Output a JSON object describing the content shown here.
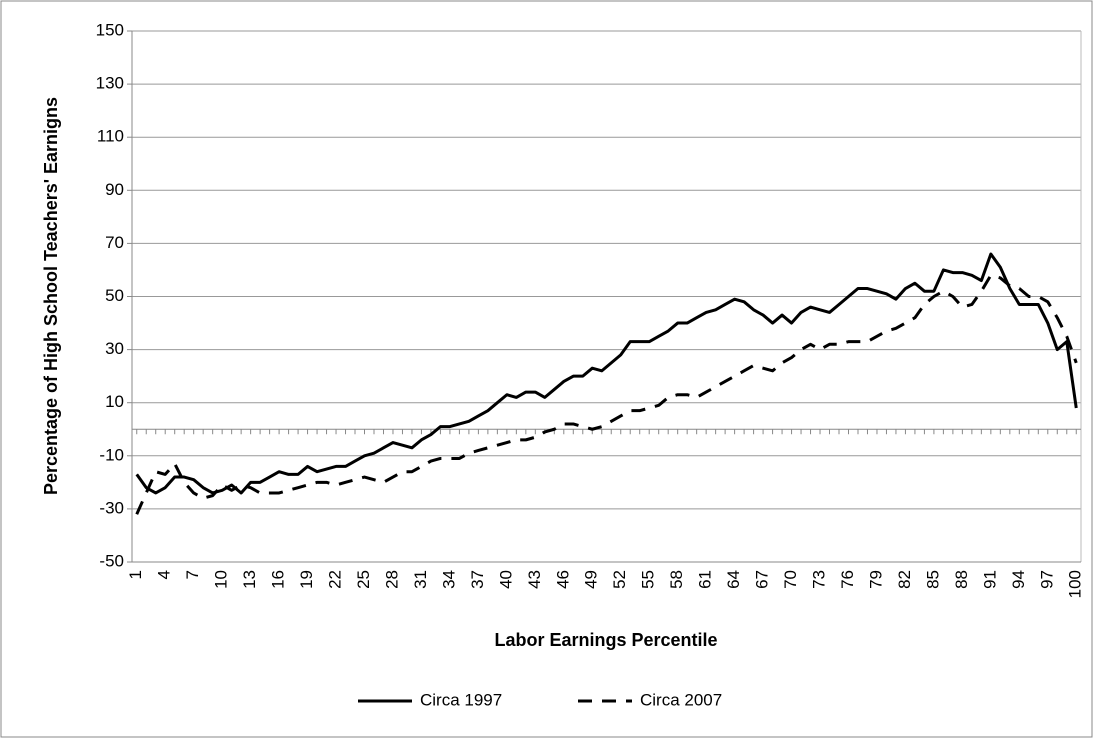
{
  "chart_data": {
    "type": "line",
    "ylabel": "Percentage of High School Teachers' Earnigns",
    "xlabel": "Labor Earnings Percentile",
    "x": [
      1,
      2,
      3,
      4,
      5,
      6,
      7,
      8,
      9,
      10,
      11,
      12,
      13,
      14,
      15,
      16,
      17,
      18,
      19,
      20,
      21,
      22,
      23,
      24,
      25,
      26,
      27,
      28,
      29,
      30,
      31,
      32,
      33,
      34,
      35,
      36,
      37,
      38,
      39,
      40,
      41,
      42,
      43,
      44,
      45,
      46,
      47,
      48,
      49,
      50,
      51,
      52,
      53,
      54,
      55,
      56,
      57,
      58,
      59,
      60,
      61,
      62,
      63,
      64,
      65,
      66,
      67,
      68,
      69,
      70,
      71,
      72,
      73,
      74,
      75,
      76,
      77,
      78,
      79,
      80,
      81,
      82,
      83,
      84,
      85,
      86,
      87,
      88,
      89,
      90,
      91,
      92,
      93,
      94,
      95,
      96,
      97,
      98,
      99,
      100
    ],
    "xlim": [
      0.5,
      100.5
    ],
    "xticks": [
      1,
      4,
      7,
      10,
      13,
      16,
      19,
      22,
      25,
      28,
      31,
      34,
      37,
      40,
      43,
      46,
      49,
      52,
      55,
      58,
      61,
      64,
      67,
      70,
      73,
      76,
      79,
      82,
      85,
      88,
      91,
      94,
      97,
      100
    ],
    "ylim": [
      -50,
      150
    ],
    "yticks": [
      -50,
      -30,
      -10,
      10,
      30,
      50,
      70,
      90,
      110,
      130,
      150
    ],
    "grid": true,
    "legend": "bottom",
    "series": [
      {
        "name": "Circa 1997",
        "color": "#000000",
        "line_style": "solid",
        "values": [
          -17,
          -22,
          -24,
          -22,
          -18,
          -18,
          -19,
          -22,
          -24,
          -23,
          -21,
          -24,
          -20,
          -20,
          -18,
          -16,
          -17,
          -17,
          -14,
          -16,
          -15,
          -14,
          -14,
          -12,
          -10,
          -9,
          -7,
          -5,
          -6,
          -7,
          -4,
          -2,
          1,
          1,
          2,
          3,
          5,
          7,
          10,
          13,
          12,
          14,
          14,
          12,
          15,
          18,
          20,
          20,
          23,
          22,
          25,
          28,
          33,
          33,
          33,
          35,
          37,
          40,
          40,
          42,
          44,
          45,
          47,
          49,
          48,
          45,
          43,
          40,
          43,
          40,
          44,
          46,
          45,
          44,
          47,
          50,
          53,
          53,
          52,
          51,
          49,
          53,
          55,
          52,
          52,
          60,
          59,
          59,
          58,
          56,
          66,
          61,
          53,
          47,
          47,
          47,
          40,
          30,
          33,
          8
        ]
      },
      {
        "name": "Circa 2007",
        "color": "#000000",
        "line_style": "dashed",
        "values": [
          -32,
          -24,
          -16,
          -17,
          -13,
          -20,
          -24,
          -26,
          -25,
          -21,
          -23,
          -21,
          -22,
          -24,
          -24,
          -24,
          -23,
          -22,
          -21,
          -20,
          -20,
          -21,
          -20,
          -19,
          -18,
          -19,
          -20,
          -18,
          -16,
          -16,
          -14,
          -12,
          -11,
          -11,
          -11,
          -9,
          -8,
          -7,
          -6,
          -5,
          -4,
          -4,
          -3,
          -1,
          0,
          2,
          2,
          1,
          0,
          1,
          3,
          5,
          7,
          7,
          8,
          9,
          12,
          13,
          13,
          12,
          14,
          16,
          18,
          20,
          22,
          24,
          23,
          22,
          25,
          27,
          30,
          32,
          30,
          32,
          32,
          33,
          33,
          33,
          35,
          37,
          38,
          40,
          42,
          47,
          50,
          52,
          50,
          46,
          47,
          52,
          58,
          57,
          54,
          53,
          50,
          50,
          48,
          42,
          35,
          25
        ]
      }
    ]
  }
}
